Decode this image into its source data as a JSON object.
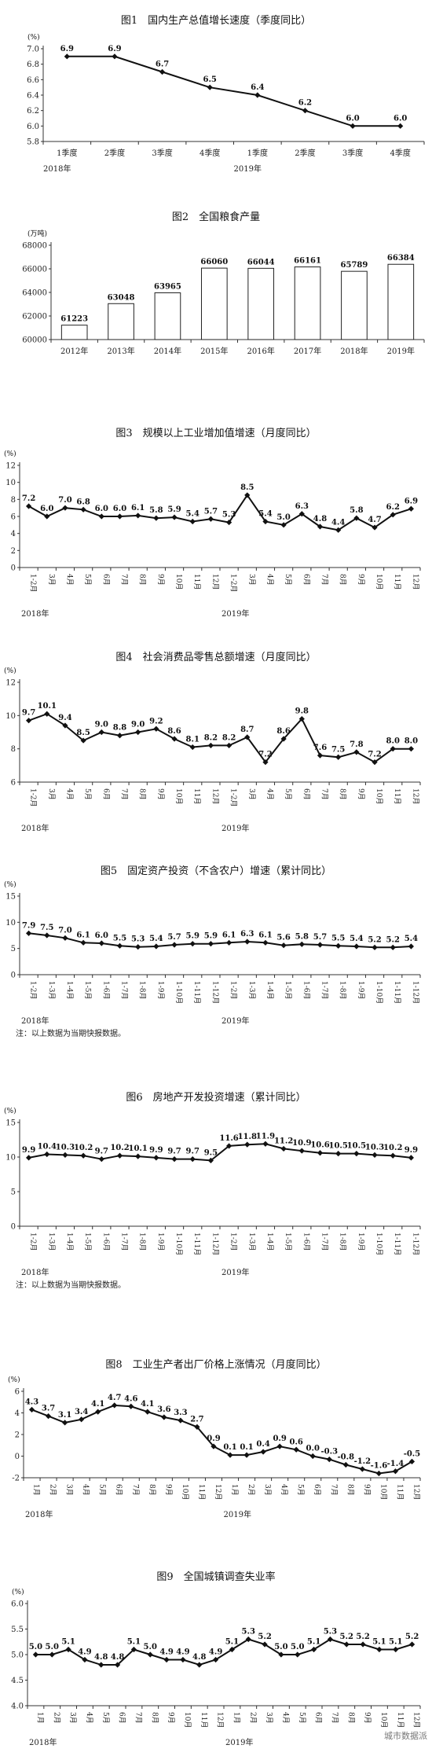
{
  "watermark": "城市数据派",
  "chart_data": [
    {
      "type": "line",
      "title": "图1　国内生产总值增长速度（季度同比）",
      "unit": "(%)",
      "categories": [
        "1季度",
        "2季度",
        "3季度",
        "4季度",
        "1季度",
        "2季度",
        "3季度",
        "4季度"
      ],
      "years": [
        "2018年",
        "2019年"
      ],
      "values": [
        6.9,
        6.9,
        6.7,
        6.5,
        6.4,
        6.2,
        6.0,
        6.0
      ],
      "labels": [
        "6.9",
        "6.9",
        "6.7",
        "6.5",
        "6.4",
        "6.2",
        "6.0",
        "6.0"
      ],
      "ylim": [
        5.8,
        7.0
      ],
      "yticks": [
        "5.8",
        "6.0",
        "6.2",
        "6.4",
        "6.6",
        "6.8",
        "7.0"
      ]
    },
    {
      "type": "bar",
      "title": "图2　全国粮食产量",
      "unit": "(万吨)",
      "categories": [
        "2012年",
        "2013年",
        "2014年",
        "2015年",
        "2016年",
        "2017年",
        "2018年",
        "2019年"
      ],
      "values": [
        61223,
        63048,
        63965,
        66060,
        66044,
        66161,
        65789,
        66384
      ],
      "labels": [
        "61223",
        "63048",
        "63965",
        "66060",
        "66044",
        "66161",
        "65789",
        "66384"
      ],
      "ylim": [
        60000,
        68000
      ],
      "yticks": [
        "60000",
        "62000",
        "64000",
        "66000",
        "68000"
      ]
    },
    {
      "type": "line",
      "title": "图3　规模以上工业增加值增速（月度同比）",
      "unit": "(%)",
      "categories": [
        "1-2月",
        "3月",
        "4月",
        "5月",
        "6月",
        "7月",
        "8月",
        "9月",
        "10月",
        "11月",
        "12月",
        "1-2月",
        "3月",
        "4月",
        "5月",
        "6月",
        "7月",
        "8月",
        "9月",
        "10月",
        "11月",
        "12月"
      ],
      "years": [
        "2018年",
        "2019年"
      ],
      "values": [
        7.2,
        6.0,
        7.0,
        6.8,
        6.0,
        6.0,
        6.1,
        5.8,
        5.9,
        5.4,
        5.7,
        5.3,
        8.5,
        5.4,
        5.0,
        6.3,
        4.8,
        4.4,
        5.8,
        4.7,
        6.2,
        6.9
      ],
      "labels": [
        "7.2",
        "6.0",
        "7.0",
        "6.8",
        "6.0",
        "6.0",
        "6.1",
        "5.8",
        "5.9",
        "5.4",
        "5.7",
        "5.3",
        "8.5",
        "5.4",
        "5.0",
        "6.3",
        "4.8",
        "4.4",
        "5.8",
        "4.7",
        "6.2",
        "6.9"
      ],
      "ylim": [
        0,
        12
      ],
      "yticks": [
        "0",
        "2",
        "4",
        "6",
        "8",
        "10",
        "12"
      ]
    },
    {
      "type": "line",
      "title": "图4　社会消费品零售总额增速（月度同比）",
      "unit": "(%)",
      "categories": [
        "1-2月",
        "3月",
        "4月",
        "5月",
        "6月",
        "7月",
        "8月",
        "9月",
        "10月",
        "11月",
        "12月",
        "1-2月",
        "3月",
        "4月",
        "5月",
        "6月",
        "7月",
        "8月",
        "9月",
        "10月",
        "11月",
        "12月"
      ],
      "years": [
        "2018年",
        "2019年"
      ],
      "values": [
        9.7,
        10.1,
        9.4,
        8.5,
        9.0,
        8.8,
        9.0,
        9.2,
        8.6,
        8.1,
        8.2,
        8.2,
        8.7,
        7.2,
        8.6,
        9.8,
        7.6,
        7.5,
        7.8,
        7.2,
        8.0,
        8.0
      ],
      "labels": [
        "9.7",
        "10.1",
        "9.4",
        "8.5",
        "9.0",
        "8.8",
        "9.0",
        "9.2",
        "8.6",
        "8.1",
        "8.2",
        "8.2",
        "8.7",
        "7.2",
        "8.6",
        "9.8",
        "7.6",
        "7.5",
        "7.8",
        "7.2",
        "8.0",
        "8.0"
      ],
      "ylim": [
        6,
        12
      ],
      "yticks": [
        "6",
        "8",
        "10",
        "12"
      ]
    },
    {
      "type": "line",
      "title": "图5　固定资产投资（不含农户）增速（累计同比）",
      "unit": "(%)",
      "categories": [
        "1-2月",
        "1-3月",
        "1-4月",
        "1-5月",
        "1-6月",
        "1-7月",
        "1-8月",
        "1-9月",
        "1-10月",
        "1-11月",
        "1-12月",
        "1-2月",
        "1-3月",
        "1-4月",
        "1-5月",
        "1-6月",
        "1-7月",
        "1-8月",
        "1-9月",
        "1-10月",
        "1-11月",
        "1-12月"
      ],
      "years": [
        "2018年",
        "2019年"
      ],
      "values": [
        7.9,
        7.5,
        7.0,
        6.1,
        6.0,
        5.5,
        5.3,
        5.4,
        5.7,
        5.9,
        5.9,
        6.1,
        6.3,
        6.1,
        5.6,
        5.8,
        5.7,
        5.5,
        5.4,
        5.2,
        5.2,
        5.4
      ],
      "labels": [
        "7.9",
        "7.5",
        "7.0",
        "6.1",
        "6.0",
        "5.5",
        "5.3",
        "5.4",
        "5.7",
        "5.9",
        "5.9",
        "6.1",
        "6.3",
        "6.1",
        "5.6",
        "5.8",
        "5.7",
        "5.5",
        "5.4",
        "5.2",
        "5.2",
        "5.4"
      ],
      "ylim": [
        0,
        15
      ],
      "yticks": [
        "0",
        "5",
        "10",
        "15"
      ],
      "note": "注：以上数据为当期快报数据。"
    },
    {
      "type": "line",
      "title": "图6　房地产开发投资增速（累计同比）",
      "unit": "(%)",
      "categories": [
        "1-2月",
        "1-3月",
        "1-4月",
        "1-5月",
        "1-6月",
        "1-7月",
        "1-8月",
        "1-9月",
        "1-10月",
        "1-11月",
        "1-12月",
        "1-2月",
        "1-3月",
        "1-4月",
        "1-5月",
        "1-6月",
        "1-7月",
        "1-8月",
        "1-9月",
        "1-10月",
        "1-11月",
        "1-12月"
      ],
      "years": [
        "2018年",
        "2019年"
      ],
      "values": [
        9.9,
        10.4,
        10.3,
        10.2,
        9.7,
        10.2,
        10.1,
        9.9,
        9.7,
        9.7,
        9.5,
        11.6,
        11.8,
        11.9,
        11.2,
        10.9,
        10.6,
        10.5,
        10.5,
        10.3,
        10.2,
        9.9
      ],
      "labels": [
        "9.9",
        "10.4",
        "10.3",
        "10.2",
        "9.7",
        "10.2",
        "10.1",
        "9.9",
        "9.7",
        "9.7",
        "9.5",
        "11.6",
        "11.8",
        "11.9",
        "11.2",
        "10.9",
        "10.6",
        "10.5",
        "10.5",
        "10.3",
        "10.2",
        "9.9"
      ],
      "ylim": [
        0,
        15
      ],
      "yticks": [
        "0",
        "5",
        "10",
        "15"
      ],
      "note": "注：以上数据为当期快报数据。"
    },
    {
      "type": "line",
      "title": "图8　工业生产者出厂价格上涨情况（月度同比）",
      "unit": "(%)",
      "categories": [
        "1月",
        "2月",
        "3月",
        "4月",
        "5月",
        "6月",
        "7月",
        "8月",
        "9月",
        "10月",
        "11月",
        "12月",
        "1月",
        "2月",
        "3月",
        "4月",
        "5月",
        "6月",
        "7月",
        "8月",
        "9月",
        "10月",
        "11月",
        "12月"
      ],
      "years": [
        "2018年",
        "2019年"
      ],
      "values": [
        4.3,
        3.7,
        3.1,
        3.4,
        4.1,
        4.7,
        4.6,
        4.1,
        3.6,
        3.3,
        2.7,
        0.9,
        0.1,
        0.1,
        0.4,
        0.9,
        0.6,
        0.0,
        -0.3,
        -0.8,
        -1.2,
        -1.6,
        -1.4,
        -0.5
      ],
      "labels": [
        "4.3",
        "3.7",
        "3.1",
        "3.4",
        "4.1",
        "4.7",
        "4.6",
        "4.1",
        "3.6",
        "3.3",
        "2.7",
        "0.9",
        "0.1",
        "0.1",
        "0.4",
        "0.9",
        "0.6",
        "0.0",
        "-0.3",
        "-0.8",
        "-1.2",
        "-1.6",
        "-1.4",
        "-0.5"
      ],
      "ylim": [
        -2,
        6
      ],
      "yticks": [
        "-2",
        "0",
        "2",
        "4",
        "6"
      ]
    },
    {
      "type": "line",
      "title": "图9　全国城镇调查失业率",
      "unit": "(%)",
      "categories": [
        "1月",
        "2月",
        "3月",
        "4月",
        "5月",
        "6月",
        "7月",
        "8月",
        "9月",
        "10月",
        "11月",
        "12月",
        "1月",
        "2月",
        "3月",
        "4月",
        "5月",
        "6月",
        "7月",
        "8月",
        "9月",
        "10月",
        "11月",
        "12月"
      ],
      "years": [
        "2018年",
        "2019年"
      ],
      "values": [
        5.0,
        5.0,
        5.1,
        4.9,
        4.8,
        4.8,
        5.1,
        5.0,
        4.9,
        4.9,
        4.8,
        4.9,
        5.1,
        5.3,
        5.2,
        5.0,
        5.0,
        5.1,
        5.3,
        5.2,
        5.2,
        5.1,
        5.1,
        5.2
      ],
      "labels": [
        "5.0",
        "5.0",
        "5.1",
        "4.9",
        "4.8",
        "4.8",
        "5.1",
        "5.0",
        "4.9",
        "4.9",
        "4.8",
        "4.9",
        "5.1",
        "5.3",
        "5.2",
        "5.0",
        "5.0",
        "5.1",
        "5.3",
        "5.2",
        "5.2",
        "5.1",
        "5.1",
        "5.2"
      ],
      "ylim": [
        4.0,
        6.0
      ],
      "yticks": [
        "4.0",
        "4.5",
        "5.0",
        "5.5",
        "6.0"
      ]
    }
  ]
}
